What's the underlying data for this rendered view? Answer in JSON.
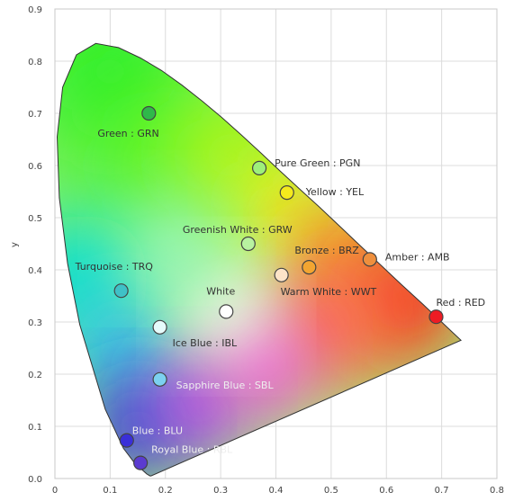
{
  "chart_data": {
    "type": "scatter",
    "title": "",
    "xlabel": "",
    "ylabel": "y",
    "xlim": [
      0,
      0.8
    ],
    "ylim": [
      0,
      0.9
    ],
    "x_ticks": [
      "0",
      "0.1",
      "0.2",
      "0.3",
      "0.4",
      "0.5",
      "0.6",
      "0.7",
      "0.8"
    ],
    "y_ticks": [
      "0.0",
      "0.1",
      "0.2",
      "0.3",
      "0.4",
      "0.5",
      "0.6",
      "0.7",
      "0.8",
      "0.9"
    ],
    "grid": true,
    "points": [
      {
        "label": "Green : GRN",
        "x": 0.17,
        "y": 0.7,
        "color": "#2fb84a",
        "label_color": "#333333"
      },
      {
        "label": "Pure Green : PGN",
        "x": 0.37,
        "y": 0.595,
        "color": "#9ef07a",
        "label_color": "#333333"
      },
      {
        "label": "Yellow : YEL",
        "x": 0.42,
        "y": 0.548,
        "color": "#f4ea1c",
        "label_color": "#333333"
      },
      {
        "label": "Greenish White : GRW",
        "x": 0.35,
        "y": 0.45,
        "color": "#b8f2a0",
        "label_color": "#333333"
      },
      {
        "label": "Bronze : BRZ",
        "x": 0.46,
        "y": 0.405,
        "color": "#f2a531",
        "label_color": "#333333"
      },
      {
        "label": "Amber : AMB",
        "x": 0.57,
        "y": 0.42,
        "color": "#ef8f3d",
        "label_color": "#333333"
      },
      {
        "label": "Turquoise : TRQ",
        "x": 0.12,
        "y": 0.36,
        "color": "#3fc1c7",
        "label_color": "#333333"
      },
      {
        "label": "Warm White : WWT",
        "x": 0.41,
        "y": 0.39,
        "color": "#fde4c8",
        "label_color": "#333333"
      },
      {
        "label": "White",
        "x": 0.31,
        "y": 0.32,
        "color": "#ffffff",
        "label_color": "#333333"
      },
      {
        "label": "Red : RED",
        "x": 0.69,
        "y": 0.31,
        "color": "#ee1c24",
        "label_color": "#333333"
      },
      {
        "label": "Ice Blue : IBL",
        "x": 0.19,
        "y": 0.29,
        "color": "#e6fbfb",
        "label_color": "#333333"
      },
      {
        "label": "Sapphire Blue : SBL",
        "x": 0.19,
        "y": 0.19,
        "color": "#7cd1f0",
        "label_color": "#eeeeee"
      },
      {
        "label": "Blue : BLU",
        "x": 0.13,
        "y": 0.073,
        "color": "#3a2fd8",
        "label_color": "#eeeeee"
      },
      {
        "label": "Royal Blue : RBL",
        "x": 0.155,
        "y": 0.03,
        "color": "#5b3bd0",
        "label_color": "#eeeeee"
      }
    ],
    "spectral_locus": [
      [
        0.174,
        0.005
      ],
      [
        0.172,
        0.005
      ],
      [
        0.166,
        0.009
      ],
      [
        0.144,
        0.03
      ],
      [
        0.124,
        0.058
      ],
      [
        0.091,
        0.133
      ],
      [
        0.045,
        0.295
      ],
      [
        0.023,
        0.412
      ],
      [
        0.008,
        0.538
      ],
      [
        0.004,
        0.655
      ],
      [
        0.014,
        0.75
      ],
      [
        0.039,
        0.812
      ],
      [
        0.074,
        0.834
      ],
      [
        0.115,
        0.826
      ],
      [
        0.155,
        0.806
      ],
      [
        0.193,
        0.782
      ],
      [
        0.23,
        0.754
      ],
      [
        0.266,
        0.724
      ],
      [
        0.302,
        0.692
      ],
      [
        0.337,
        0.659
      ],
      [
        0.373,
        0.624
      ],
      [
        0.408,
        0.589
      ],
      [
        0.444,
        0.554
      ],
      [
        0.479,
        0.52
      ],
      [
        0.513,
        0.486
      ],
      [
        0.545,
        0.454
      ],
      [
        0.575,
        0.424
      ],
      [
        0.627,
        0.372
      ],
      [
        0.666,
        0.334
      ],
      [
        0.692,
        0.308
      ],
      [
        0.735,
        0.265
      ]
    ]
  }
}
